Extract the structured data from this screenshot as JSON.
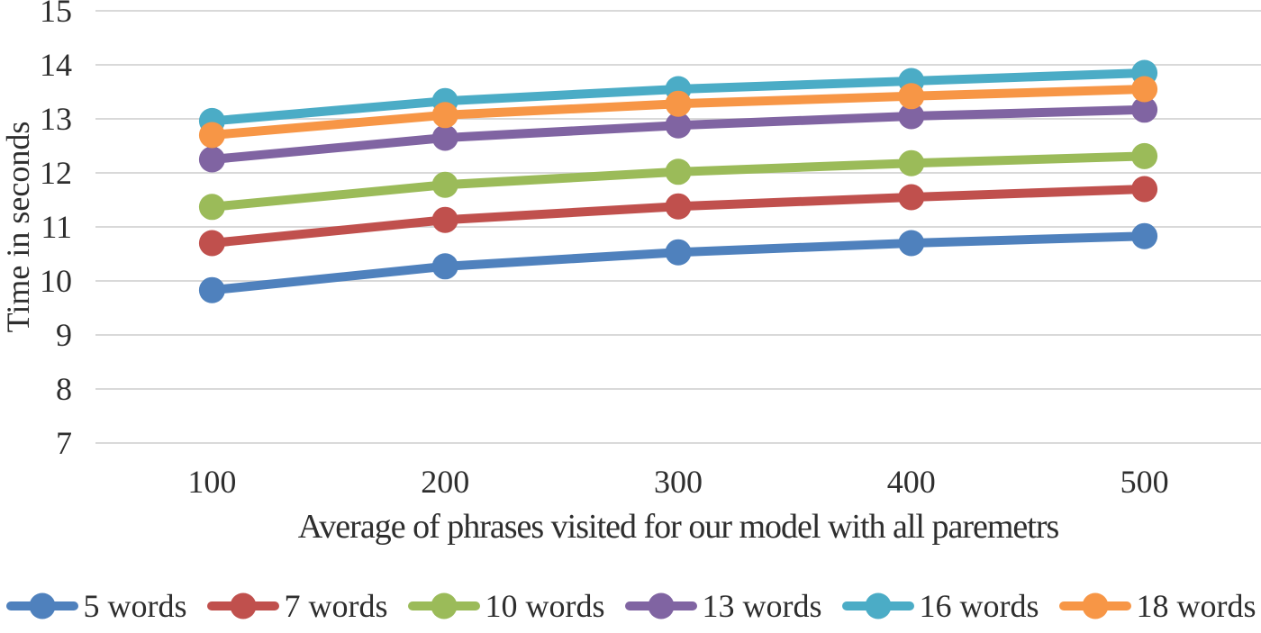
{
  "chart_data": {
    "type": "line",
    "title": "",
    "xlabel": "Average of phrases visited for our model with all paremetrs",
    "ylabel": "Time in seconds",
    "categories": [
      "100",
      "200",
      "300",
      "400",
      "500"
    ],
    "series": [
      {
        "name": "5 words",
        "color": "#4F81BD",
        "values": [
          9.83,
          10.27,
          10.53,
          10.7,
          10.83
        ]
      },
      {
        "name": "7 words",
        "color": "#C0504D",
        "values": [
          10.7,
          11.13,
          11.38,
          11.55,
          11.7
        ]
      },
      {
        "name": "10 words",
        "color": "#9BBB59",
        "values": [
          11.37,
          11.78,
          12.02,
          12.18,
          12.31
        ]
      },
      {
        "name": "13 words",
        "color": "#8064A2",
        "values": [
          12.25,
          12.65,
          12.88,
          13.05,
          13.17
        ]
      },
      {
        "name": "16 words",
        "color": "#4BACC6",
        "values": [
          12.96,
          13.33,
          13.55,
          13.7,
          13.85
        ]
      },
      {
        "name": "18 words",
        "color": "#F79646",
        "values": [
          12.7,
          13.07,
          13.28,
          13.42,
          13.55
        ]
      }
    ],
    "ylim": [
      7,
      15
    ],
    "ytick_step": 1,
    "yticks": [
      "15",
      "14",
      "13",
      "12",
      "11",
      "10",
      "9",
      "8",
      "7"
    ],
    "grid": "horizontal",
    "gridline_color": "#D9D9D9",
    "text_color": "#2e2e2e",
    "legend_position": "bottom",
    "marker_style": "circle"
  }
}
